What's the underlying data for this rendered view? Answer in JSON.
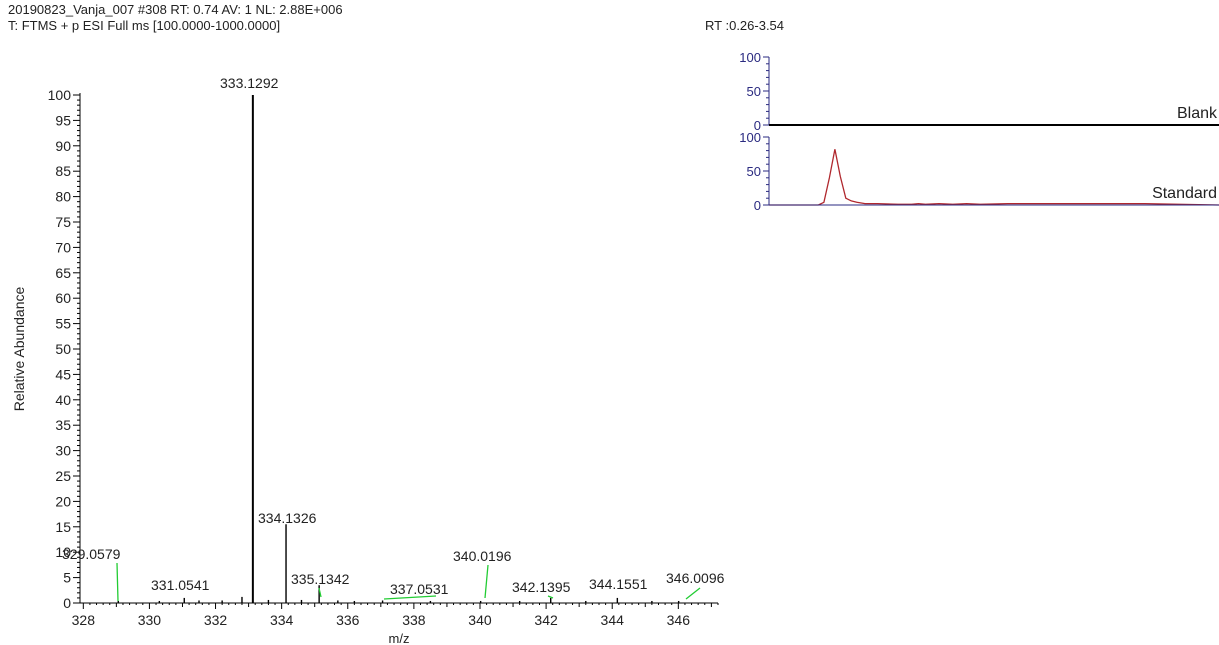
{
  "header": {
    "line1": "20190823_Vanja_007 #308 RT: 0.74 AV: 1 NL: 2.88E+006",
    "line2": "T: FTMS + p ESI Full ms [100.0000-1000.0000]",
    "rt_range": "RT :0.26-3.54"
  },
  "chart_data": [
    {
      "type": "bar",
      "title": "",
      "xlabel": "m/z",
      "ylabel": "Relative Abundance",
      "xlim": [
        327.9,
        347.2
      ],
      "ylim": [
        0,
        100
      ],
      "xticks": [
        "328",
        "330",
        "332",
        "334",
        "336",
        "338",
        "340",
        "342",
        "344",
        "346"
      ],
      "yticks": [
        "0",
        "5",
        "10",
        "15",
        "20",
        "25",
        "30",
        "35",
        "40",
        "45",
        "50",
        "55",
        "60",
        "65",
        "70",
        "75",
        "80",
        "85",
        "90",
        "95",
        "100"
      ],
      "peaks": [
        {
          "mz": 329.0579,
          "value": 0.4,
          "label": "329.0579",
          "labelled": true
        },
        {
          "mz": 330.3,
          "value": 0.4,
          "labelled": false
        },
        {
          "mz": 331.0541,
          "value": 1.0,
          "label": "331.0541",
          "labelled": true
        },
        {
          "mz": 331.5,
          "value": 0.5,
          "labelled": false
        },
        {
          "mz": 332.2,
          "value": 0.5,
          "labelled": false
        },
        {
          "mz": 332.8,
          "value": 1.2,
          "labelled": false
        },
        {
          "mz": 333.1292,
          "value": 100,
          "label": "333.1292",
          "labelled": true
        },
        {
          "mz": 333.6,
          "value": 0.6,
          "labelled": false
        },
        {
          "mz": 334.1326,
          "value": 15.5,
          "label": "334.1326",
          "labelled": true
        },
        {
          "mz": 334.6,
          "value": 0.6,
          "labelled": false
        },
        {
          "mz": 335.1342,
          "value": 3.5,
          "label": "335.1342",
          "labelled": true
        },
        {
          "mz": 335.7,
          "value": 0.5,
          "labelled": false
        },
        {
          "mz": 336.2,
          "value": 0.4,
          "labelled": false
        },
        {
          "mz": 337.0531,
          "value": 0.5,
          "label": "337.0531",
          "labelled": true
        },
        {
          "mz": 338.5,
          "value": 0.4,
          "labelled": false
        },
        {
          "mz": 340.0196,
          "value": 0.4,
          "label": "340.0196",
          "labelled": true
        },
        {
          "mz": 341.2,
          "value": 0.4,
          "labelled": false
        },
        {
          "mz": 342.1395,
          "value": 1.0,
          "label": "342.1395",
          "labelled": true
        },
        {
          "mz": 343.2,
          "value": 0.4,
          "labelled": false
        },
        {
          "mz": 344.1551,
          "value": 1.0,
          "label": "344.1551",
          "labelled": true
        },
        {
          "mz": 345.2,
          "value": 0.4,
          "labelled": false
        },
        {
          "mz": 346.0096,
          "value": 0.4,
          "label": "346.0096",
          "labelled": true
        }
      ],
      "colors": {
        "peak": "#000000",
        "leader": "#22cc33"
      }
    },
    {
      "type": "line",
      "title": "",
      "ylim": [
        0,
        100
      ],
      "yticks": [
        "0",
        "50",
        "100"
      ],
      "series": [
        {
          "name": "Blank",
          "color": "#000000",
          "x": [
            0.26,
            3.54
          ],
          "y": [
            0,
            0
          ]
        },
        {
          "name": "Standard",
          "color": "#b0282e",
          "x": [
            0.26,
            0.5,
            0.62,
            0.66,
            0.7,
            0.74,
            0.78,
            0.82,
            0.86,
            0.9,
            0.96,
            1.05,
            1.2,
            1.3,
            1.35,
            1.4,
            1.5,
            1.6,
            1.7,
            1.8,
            2.0,
            2.5,
            3.0,
            3.54
          ],
          "y": [
            0,
            0,
            0,
            4,
            40,
            82,
            42,
            10,
            6,
            4,
            2,
            2,
            1,
            1,
            2,
            1,
            2,
            1,
            2,
            1,
            2,
            2,
            2,
            0
          ]
        }
      ]
    }
  ]
}
